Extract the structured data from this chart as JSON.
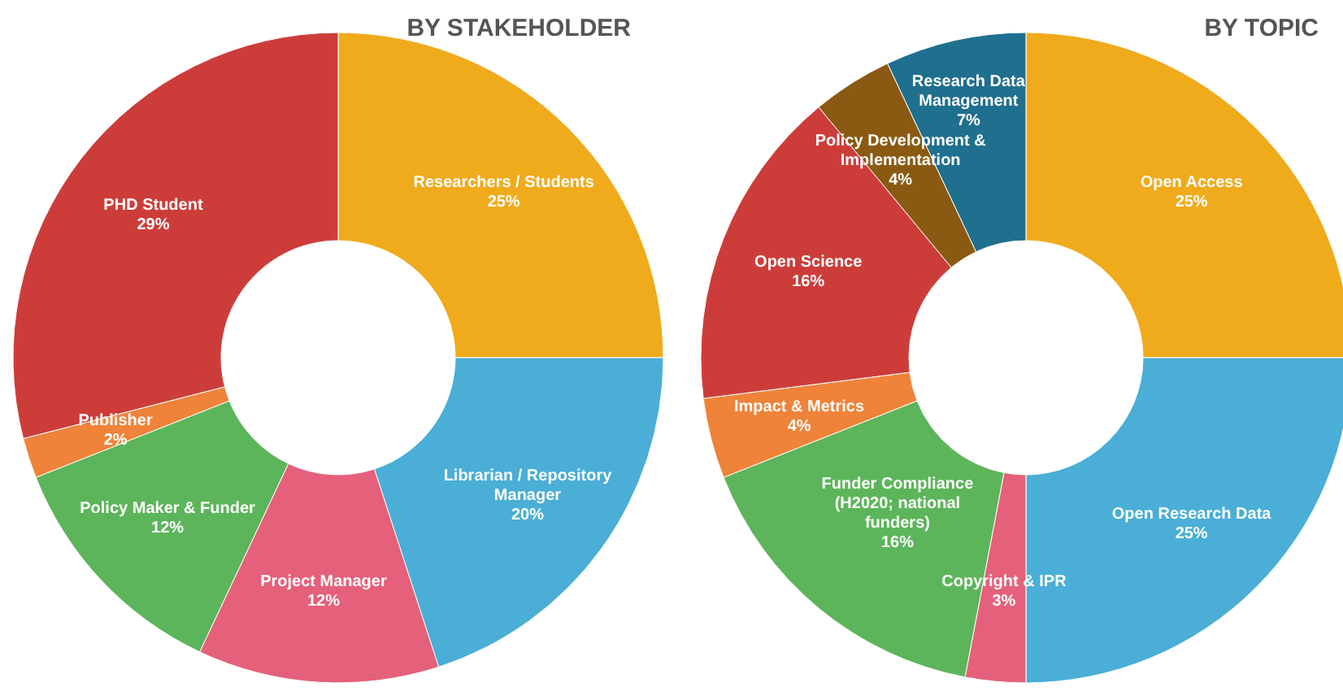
{
  "chart_data": [
    {
      "type": "donut",
      "title": "BY STAKEHOLDER",
      "categories": [
        "Researchers / Students",
        "Librarian / Repository Manager",
        "Project Manager",
        "Policy Maker & Funder",
        "Publisher",
        "PHD Student"
      ],
      "values": [
        25,
        20,
        12,
        12,
        2,
        29
      ],
      "value_labels": [
        "25%",
        "20%",
        "12%",
        "12%",
        "2%",
        "29%"
      ],
      "colors": [
        "#f0ab1c",
        "#4aaed6",
        "#e5607a",
        "#5cb55a",
        "#ef8339",
        "#cc3d3a"
      ]
    },
    {
      "type": "donut",
      "title": "BY TOPIC",
      "categories": [
        "Open Access",
        "Open Research Data",
        "Copyright & IPR",
        "Funder Compliance (H2020; national funders)",
        "Impact & Metrics",
        "Open Science",
        "Policy Development & Implementation",
        "Research Data Management"
      ],
      "values": [
        25,
        25,
        3,
        16,
        4,
        16,
        4,
        7
      ],
      "value_labels": [
        "25%",
        "25%",
        "3%",
        "16%",
        "4%",
        "16%",
        "4%",
        "7%"
      ],
      "colors": [
        "#f0ab1c",
        "#4aaed6",
        "#e5607a",
        "#5cb55a",
        "#ef8339",
        "#cc3d3a",
        "#8a5a12",
        "#1f6f8f"
      ]
    }
  ]
}
